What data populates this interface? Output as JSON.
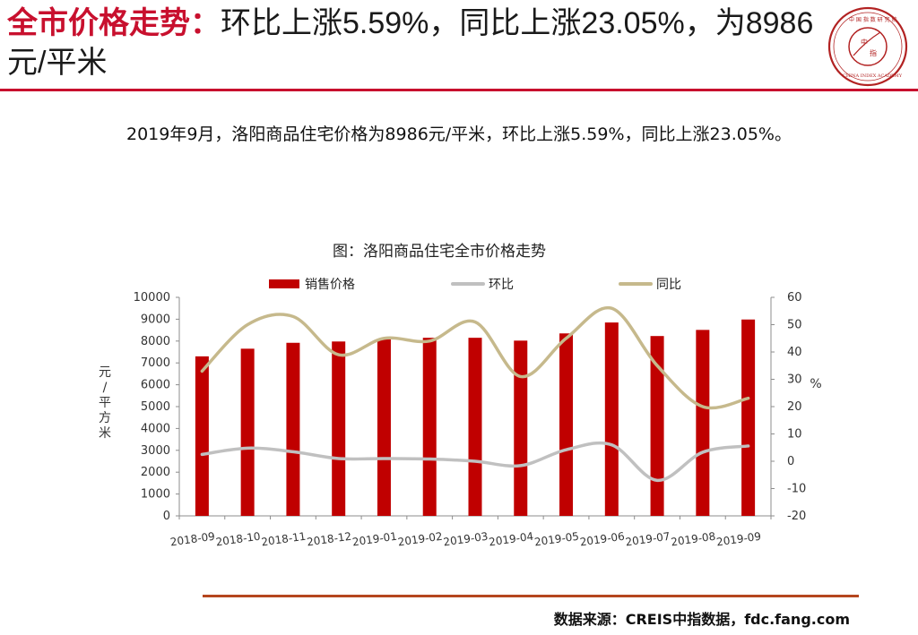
{
  "header": {
    "title_highlight": "全市价格走势：",
    "title_rest": "环比上涨5.59%，同比上涨23.05%，为8986元/平米"
  },
  "logo": {
    "center_text": "中 指",
    "top_text": "中国指数研究院",
    "bottom_text": "CHINA INDEX ACADEMY"
  },
  "summary": "2019年9月，洛阳商品住宅价格为8986元/平米，环比上涨5.59%，同比上涨23.05%。",
  "source": "数据来源：CREIS中指数据，fdc.fang.com",
  "colors": {
    "accent": "#c8102e",
    "bar": "#c00000",
    "mom_line": "#c0c0c0",
    "yoy_line": "#c6b98c",
    "rule_bottom": "#b5461e"
  },
  "chart_data": {
    "type": "bar",
    "title": "图：洛阳商品住宅全市价格走势",
    "categories": [
      "2018-09",
      "2018-10",
      "2018-11",
      "2018-12",
      "2019-01",
      "2019-02",
      "2019-03",
      "2019-04",
      "2019-05",
      "2019-06",
      "2019-07",
      "2019-08",
      "2019-09"
    ],
    "series": [
      {
        "name": "销售价格",
        "kind": "bar",
        "axis": "left",
        "values": [
          7300,
          7650,
          7920,
          7980,
          8080,
          8150,
          8150,
          8020,
          8350,
          8850,
          8230,
          8510,
          8986
        ]
      },
      {
        "name": "环比",
        "kind": "line",
        "axis": "right",
        "values": [
          2.5,
          4.8,
          3.5,
          1.0,
          1.0,
          0.8,
          0.0,
          -1.6,
          4.2,
          6.0,
          -7.0,
          3.3,
          5.59
        ]
      },
      {
        "name": "同比",
        "kind": "line",
        "axis": "right",
        "values": [
          33,
          50,
          53,
          39,
          45,
          44,
          51,
          31,
          45,
          56,
          35,
          20,
          23.05
        ]
      }
    ],
    "ylabel_left": "元/平方米",
    "ylabel_right": "%",
    "ylim_left": [
      0,
      10000
    ],
    "ylim_right": [
      -20,
      60
    ],
    "yticks_left": [
      0,
      1000,
      2000,
      3000,
      4000,
      5000,
      6000,
      7000,
      8000,
      9000,
      10000
    ],
    "yticks_right": [
      -20,
      -10,
      0,
      10,
      20,
      30,
      40,
      50,
      60
    ],
    "legend": "top",
    "grid": false
  }
}
